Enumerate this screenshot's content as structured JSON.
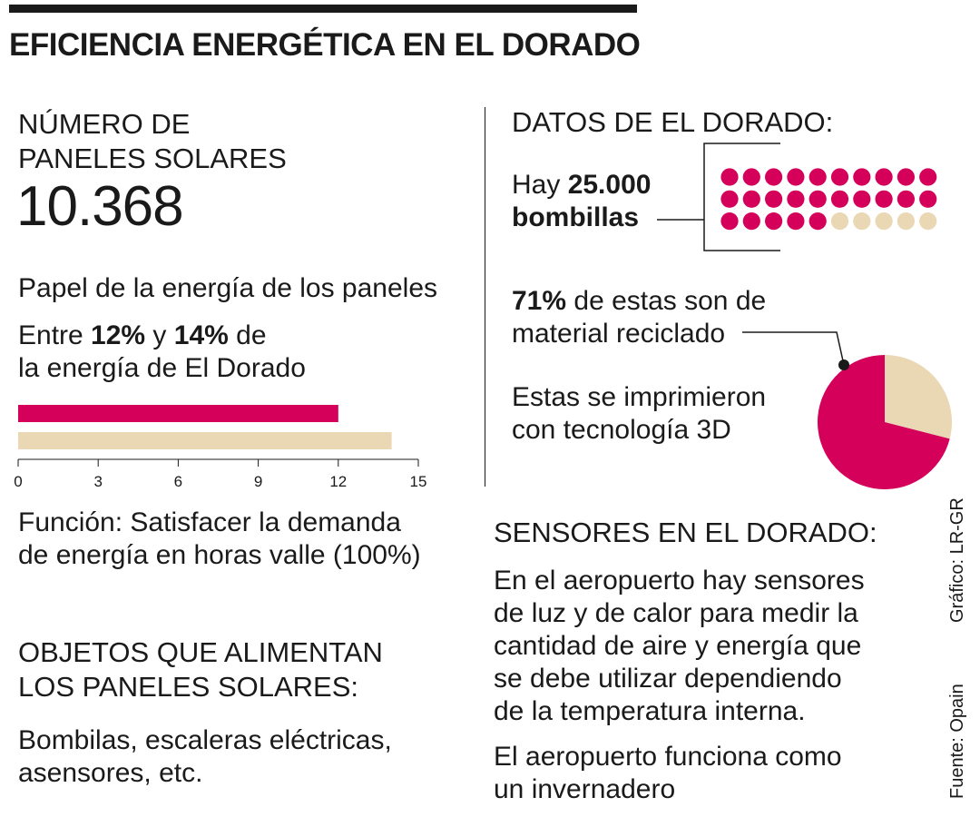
{
  "title": "EFICIENCIA ENERGÉTICA EN EL DORADO",
  "paneles": {
    "heading_line1": "NÚMERO DE",
    "heading_line2": "PANELES SOLARES",
    "count": "10.368"
  },
  "papel": {
    "heading": "Papel de la energía de los paneles",
    "prefix": "Entre ",
    "low": "12%",
    "middle": " y ",
    "high": "14%",
    "suffix_line1": " de",
    "line2": "la energía de El Dorado"
  },
  "funcion": {
    "label": "Función:",
    "text_line1": " Satisfacer la demanda",
    "text_line2": "de energía en horas valle (100%)"
  },
  "objetos": {
    "heading_line1": "OBJETOS QUE ALIMENTAN",
    "heading_line2": "LOS PANELES SOLARES:",
    "text_line1": "Bombilas, escaleras eléctricas,",
    "text_line2": "asensores, etc."
  },
  "datos": {
    "heading": "DATOS DE EL DORADO:",
    "hay": "Hay ",
    "bulbs": "25.000",
    "bulbs_word": "bombillas",
    "recycled_pct": "71%",
    "recycled_line1": " de estas son de",
    "recycled_line2": "material reciclado",
    "printed_line1": "Estas se imprimieron",
    "printed_line2": "con tecnología 3D"
  },
  "sensores": {
    "heading": "SENSORES EN EL DORADO:",
    "p1_line1": "En el aeropuerto hay sensores",
    "p1_line2": "de luz y de calor para medir la",
    "p1_line3": "cantidad de aire y energía que",
    "p1_line4": "se debe utilizar dependiendo",
    "p1_line5": "de la temperatura interna.",
    "p2_line1": "El aeropuerto funciona como",
    "p2_line2": "un invernadero"
  },
  "credits": {
    "grafico": "Gráfico: LR-GR",
    "fuente": "Fuente: Opain"
  },
  "colors": {
    "magenta": "#d4005a",
    "beige": "#ead7b4",
    "ink": "#1a1a1a"
  },
  "chart_data": [
    {
      "type": "bar",
      "orientation": "horizontal",
      "values": [
        12,
        14
      ],
      "bar_colors": [
        "#d4005a",
        "#ead7b4"
      ],
      "xlim": [
        0,
        15
      ],
      "xticks": [
        0,
        3,
        6,
        9,
        12,
        15
      ],
      "tick_labels": [
        "0",
        "3",
        "6",
        "9",
        "12",
        "15"
      ]
    },
    {
      "type": "pie",
      "values": [
        71,
        29
      ],
      "slice_colors": [
        "#d4005a",
        "#ead7b4"
      ]
    },
    {
      "type": "dot-grid",
      "total_dots": 30,
      "filled_dots": 25,
      "columns": 10,
      "filled_color": "#d4005a",
      "empty_color": "#ead7b4"
    }
  ]
}
